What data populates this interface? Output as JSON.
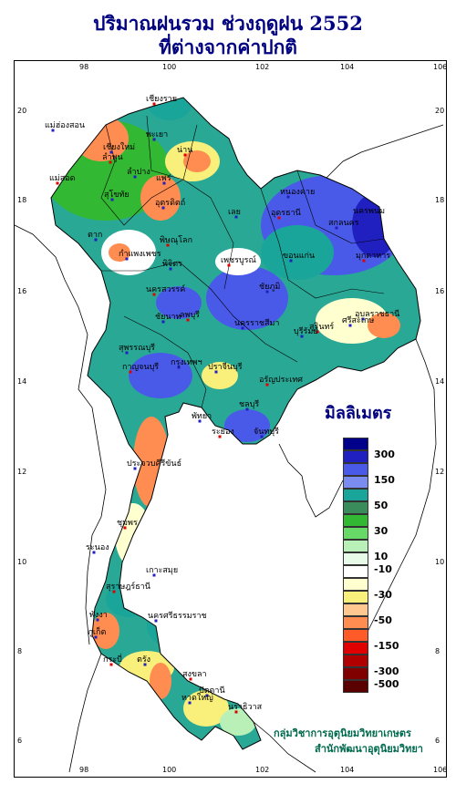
{
  "title_line1": "ปริมาณฝนรวม ช่วงฤดูฝน 2552",
  "title_line2": "ที่ต่างจากค่าปกติ",
  "lon_ticks": [
    "98",
    "100",
    "102",
    "104",
    "106"
  ],
  "lat_ticks": [
    "20",
    "18",
    "16",
    "14",
    "12",
    "10",
    "8",
    "6"
  ],
  "legend": {
    "title": "มิลลิเมตร",
    "labels": [
      "300",
      "150",
      "50",
      "30",
      "10",
      "-10",
      "-30",
      "-50",
      "-150",
      "-300",
      "-500"
    ],
    "colors": [
      "#00008b",
      "#2020c0",
      "#4a5ae8",
      "#7b8cf0",
      "#1aa59a",
      "#3a8c5a",
      "#33b833",
      "#66d966",
      "#b8f0b8",
      "#e8fbe8",
      "#ffffff",
      "#ffffd0",
      "#f8f07a",
      "#ffc890",
      "#ff8c50",
      "#ff5a28",
      "#e00000",
      "#b00000",
      "#800000",
      "#5a0000"
    ]
  },
  "credit": {
    "line1": "กลุ่มวิชาการอุตุนิยมวิทยาเกษตร",
    "line2": "สำนักพัฒนาอุตุนิยมวิทยา"
  },
  "places": [
    {
      "name": "เชียงราย"
    },
    {
      "name": "แม่ฮ่องสอน"
    },
    {
      "name": "เชียงใหม่"
    },
    {
      "name": "ลำพูน"
    },
    {
      "name": "ลำปาง"
    },
    {
      "name": "พะเยา"
    },
    {
      "name": "น่าน"
    },
    {
      "name": "แพร่"
    },
    {
      "name": "ตาก"
    },
    {
      "name": "แม่สอด"
    },
    {
      "name": "อุตรดิตถ์"
    },
    {
      "name": "สุโขทัย"
    },
    {
      "name": "พิษณุโลก"
    },
    {
      "name": "กำแพงเพชร"
    },
    {
      "name": "พิจิตร"
    },
    {
      "name": "เพชรบูรณ์"
    },
    {
      "name": "เลย"
    },
    {
      "name": "หนองคาย"
    },
    {
      "name": "อุดรธานี"
    },
    {
      "name": "สกลนคร"
    },
    {
      "name": "นครพนม"
    },
    {
      "name": "มุกดาหาร"
    },
    {
      "name": "ขอนแก่น"
    },
    {
      "name": "ชัยภูมิ"
    },
    {
      "name": "นครสวรรค์"
    },
    {
      "name": "อุบลราชธานี"
    },
    {
      "name": "ศรีสะเกษ"
    },
    {
      "name": "สุรินทร์"
    },
    {
      "name": "บุรีรัมย์"
    },
    {
      "name": "นครราชสีมา"
    },
    {
      "name": "ลพบุรี"
    },
    {
      "name": "ชัยนาท"
    },
    {
      "name": "สุพรรณบุรี"
    },
    {
      "name": "กาญจนบุรี"
    },
    {
      "name": "กรุงเทพฯ"
    },
    {
      "name": "ปราจีนบุรี"
    },
    {
      "name": "อรัญประเทศ"
    },
    {
      "name": "ชลบุรี"
    },
    {
      "name": "พัทยา"
    },
    {
      "name": "ระยอง"
    },
    {
      "name": "จันทบุรี"
    },
    {
      "name": "ประจวบคีรีขันธ์"
    },
    {
      "name": "ชุมพร"
    },
    {
      "name": "ระนอง"
    },
    {
      "name": "เกาะสมุย"
    },
    {
      "name": "สุราษฎร์ธานี"
    },
    {
      "name": "พังงา"
    },
    {
      "name": "ภูเก็ต"
    },
    {
      "name": "กระบี่"
    },
    {
      "name": "นครศรีธรรมราช"
    },
    {
      "name": "ตรัง"
    },
    {
      "name": "สงขลา"
    },
    {
      "name": "หาดใหญ่"
    },
    {
      "name": "ปัตตานี"
    },
    {
      "name": "นราธิวาส"
    }
  ]
}
